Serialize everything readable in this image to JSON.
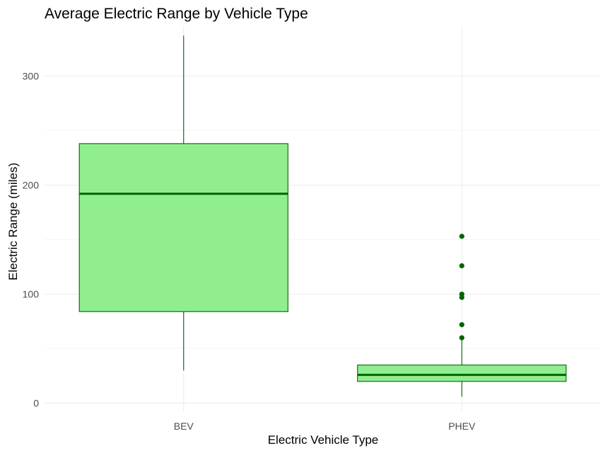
{
  "chart_data": {
    "type": "box",
    "title": "Average Electric Range by Vehicle Type",
    "xlabel": "Electric Vehicle Type",
    "ylabel": "Electric Range (miles)",
    "ylim": [
      -8,
      345
    ],
    "yticks": [
      0,
      100,
      200,
      300
    ],
    "categories": [
      "BEV",
      "PHEV"
    ],
    "boxes": [
      {
        "category": "BEV",
        "whisker_low": 30,
        "q1": 84,
        "median": 192,
        "q3": 238,
        "whisker_high": 337,
        "outliers": []
      },
      {
        "category": "PHEV",
        "whisker_low": 6,
        "q1": 20,
        "median": 26,
        "q3": 35,
        "whisker_high": 59,
        "outliers": [
          60,
          72,
          97,
          100,
          126,
          153
        ]
      }
    ],
    "grid": true,
    "legend": "none",
    "colors": {
      "box_fill": "#90ee90",
      "line": "#006400",
      "outlier": "#006400"
    }
  }
}
